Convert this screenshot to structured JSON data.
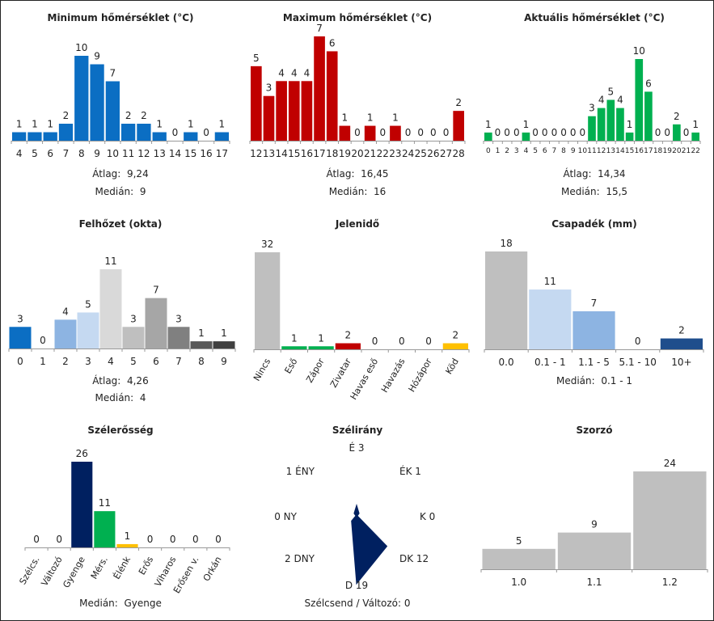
{
  "chart_data": [
    {
      "id": "min_temp",
      "type": "bar",
      "title": "Minimum hőmérséklet (°C)",
      "categories": [
        "4",
        "5",
        "6",
        "7",
        "8",
        "9",
        "10",
        "11",
        "12",
        "13",
        "14",
        "15",
        "16",
        "17"
      ],
      "values": [
        1,
        1,
        1,
        2,
        10,
        9,
        7,
        2,
        2,
        1,
        0,
        1,
        0,
        1
      ],
      "colors": [
        "#0b6ec3"
      ],
      "stats": [
        {
          "label": "Átlag:",
          "value": "9,24"
        },
        {
          "label": "Medián:",
          "value": "9"
        }
      ]
    },
    {
      "id": "max_temp",
      "type": "bar",
      "title": "Maximum hőmérséklet (°C)",
      "categories": [
        "12",
        "13",
        "14",
        "15",
        "16",
        "17",
        "18",
        "19",
        "20",
        "21",
        "22",
        "23",
        "24",
        "25",
        "26",
        "27",
        "28"
      ],
      "values": [
        5,
        3,
        4,
        4,
        4,
        7,
        6,
        1,
        0,
        1,
        0,
        1,
        0,
        0,
        0,
        0,
        2
      ],
      "colors": [
        "#c00000"
      ],
      "stats": [
        {
          "label": "Átlag:",
          "value": "16,45"
        },
        {
          "label": "Medián:",
          "value": "16"
        }
      ]
    },
    {
      "id": "cur_temp",
      "type": "bar",
      "title": "Aktuális hőmérséklet (°C)",
      "categories": [
        "0",
        "1",
        "2",
        "3",
        "4",
        "5",
        "6",
        "7",
        "8",
        "9",
        "10",
        "11",
        "12",
        "13",
        "14",
        "15",
        "16",
        "17",
        "18",
        "19",
        "20",
        "21",
        "22"
      ],
      "values": [
        1,
        0,
        0,
        0,
        1,
        0,
        0,
        0,
        0,
        0,
        0,
        3,
        4,
        5,
        4,
        1,
        10,
        6,
        0,
        0,
        2,
        0,
        1
      ],
      "colors": [
        "#00b050"
      ],
      "stats": [
        {
          "label": "Átlag:",
          "value": "14,34"
        },
        {
          "label": "Medián:",
          "value": "15,5"
        }
      ]
    },
    {
      "id": "cloud",
      "type": "bar",
      "title": "Felhőzet (okta)",
      "categories": [
        "0",
        "1",
        "2",
        "3",
        "4",
        "5",
        "6",
        "7",
        "8",
        "9"
      ],
      "values": [
        3,
        0,
        4,
        5,
        11,
        3,
        7,
        3,
        1,
        1
      ],
      "colors": [
        "#0b6ec3",
        "#0b6ec3",
        "#8db4e2",
        "#c5d9f1",
        "#d9d9d9",
        "#bfbfbf",
        "#a6a6a6",
        "#808080",
        "#595959",
        "#404040"
      ],
      "stats": [
        {
          "label": "Átlag:",
          "value": "4,26"
        },
        {
          "label": "Medián:",
          "value": "4"
        }
      ]
    },
    {
      "id": "weather",
      "type": "bar",
      "title": "Jelenidő",
      "categories": [
        "Nincs",
        "Eső",
        "Zápor",
        "Zivatar",
        "Havas eső",
        "Havazás",
        "Hózápor",
        "Köd"
      ],
      "values": [
        32,
        1,
        1,
        2,
        0,
        0,
        0,
        2
      ],
      "colors": [
        "#bfbfbf",
        "#00b050",
        "#00b050",
        "#c00000",
        "#c00000",
        "#c00000",
        "#c00000",
        "#ffc000"
      ],
      "rotate_labels": true,
      "stats": []
    },
    {
      "id": "precip",
      "type": "bar",
      "title": "Csapadék (mm)",
      "categories": [
        "0.0",
        "0.1 - 1",
        "1.1 - 5",
        "5.1 - 10",
        "10+"
      ],
      "values": [
        18,
        11,
        7,
        0,
        2
      ],
      "colors": [
        "#bfbfbf",
        "#c5d9f1",
        "#8db4e2",
        "#538dd5",
        "#1f4e8c"
      ],
      "stats": [
        {
          "label": "Medián:",
          "value": "0.1 - 1"
        }
      ]
    },
    {
      "id": "wind_strength",
      "type": "bar",
      "title": "Szélerősség",
      "categories": [
        "Szélcs.",
        "Változó",
        "Gyenge",
        "Mérs.",
        "Élénk",
        "Erős",
        "Viharos",
        "Erősen v.",
        "Orkán"
      ],
      "values": [
        0,
        0,
        26,
        11,
        1,
        0,
        0,
        0,
        0
      ],
      "colors": [
        "#7f7f7f",
        "#7f7f7f",
        "#002060",
        "#00b050",
        "#ffc000",
        "#c00000",
        "#c00000",
        "#c00000",
        "#c00000"
      ],
      "rotate_labels": true,
      "stats": [
        {
          "label": "Medián:",
          "value": "Gyenge"
        }
      ]
    },
    {
      "id": "wind_dir",
      "type": "radar",
      "title": "Szélirány",
      "directions": [
        {
          "label": "É",
          "value": 3
        },
        {
          "label": "ÉK",
          "value": 1
        },
        {
          "label": "K",
          "value": 0
        },
        {
          "label": "DK",
          "value": 12
        },
        {
          "label": "D",
          "value": 19
        },
        {
          "label": "DNY",
          "value": 2
        },
        {
          "label": "NY",
          "value": 0
        },
        {
          "label": "ÉNY",
          "value": 1
        }
      ],
      "color": "#002060",
      "footer": "Szélcsend / Változó: 0"
    },
    {
      "id": "multiplier",
      "type": "bar",
      "title": "Szorzó",
      "categories": [
        "1.0",
        "1.1",
        "1.2"
      ],
      "values": [
        5,
        9,
        24
      ],
      "colors": [
        "#bfbfbf"
      ],
      "stats": []
    }
  ]
}
